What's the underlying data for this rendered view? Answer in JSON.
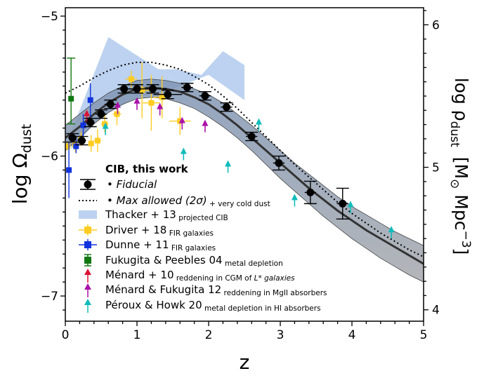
{
  "chart_data": {
    "type": "scatter",
    "xlabel": "z",
    "ylabel_left_main": "log Ω",
    "ylabel_left_sub": "dust",
    "ylabel_right_a": "log ρ",
    "ylabel_right_a_sub": "dust",
    "ylabel_right_b": "[M",
    "ylabel_right_b_sub": "⊙",
    "ylabel_right_b_rest": " Mpc",
    "ylabel_right_b_sup": "−3",
    "ylabel_right_b_close": "]",
    "xlim": [
      0,
      5
    ],
    "ylim_left": [
      -7.18,
      -4.94
    ],
    "ylim_right": [
      3.92,
      6.12
    ],
    "x_ticks": [
      "0",
      "1",
      "2",
      "3",
      "4",
      "5"
    ],
    "y_ticks_left": [
      "−5",
      "−6",
      "−7"
    ],
    "y_ticks_right": [
      "6",
      "5",
      "4"
    ],
    "colors": {
      "fiducial": "#333333",
      "band": "#9aa0a6",
      "band_top": "#6b86a8",
      "thacker": "#bcd2f0",
      "driver": "#ffcc22",
      "dunne": "#1133dd",
      "fukugita": "#117711",
      "menard10": "#dd1133",
      "menard_fukugita": "#aa11aa",
      "peroux": "#11bbbb"
    },
    "series": [
      {
        "name": "CIB, this work",
        "kind": "fiducial",
        "legend_lines": [
          "• Fiducial",
          "• Max allowed (2σ)"
        ],
        "legend_sub": " + very cold dust",
        "curve_x": [
          0,
          0.2,
          0.4,
          0.6,
          0.8,
          1.0,
          1.2,
          1.4,
          1.6,
          1.8,
          2.0,
          2.2,
          2.4,
          2.6,
          2.8,
          3.0,
          3.2,
          3.4,
          3.6,
          3.8,
          4.0,
          4.2,
          4.4,
          4.6,
          4.8,
          5.0
        ],
        "curve_y": [
          -5.87,
          -5.79,
          -5.7,
          -5.62,
          -5.56,
          -5.52,
          -5.51,
          -5.52,
          -5.54,
          -5.58,
          -5.63,
          -5.7,
          -5.78,
          -5.87,
          -5.96,
          -6.05,
          -6.14,
          -6.23,
          -6.31,
          -6.39,
          -6.46,
          -6.53,
          -6.59,
          -6.65,
          -6.71,
          -6.77
        ],
        "band_lo": [
          -5.96,
          -5.87,
          -5.77,
          -5.69,
          -5.63,
          -5.59,
          -5.58,
          -5.59,
          -5.62,
          -5.66,
          -5.72,
          -5.79,
          -5.87,
          -5.96,
          -6.06,
          -6.16,
          -6.25,
          -6.34,
          -6.43,
          -6.51,
          -6.59,
          -6.66,
          -6.73,
          -6.79,
          -6.85,
          -6.9
        ],
        "band_hi": [
          -5.78,
          -5.7,
          -5.62,
          -5.55,
          -5.5,
          -5.46,
          -5.45,
          -5.46,
          -5.48,
          -5.52,
          -5.56,
          -5.62,
          -5.7,
          -5.78,
          -5.87,
          -5.96,
          -6.05,
          -6.13,
          -6.21,
          -6.29,
          -6.36,
          -6.42,
          -6.48,
          -6.54,
          -6.59,
          -6.64
        ],
        "max_y": [
          -5.55,
          -5.5,
          -5.44,
          -5.39,
          -5.35,
          -5.33,
          -5.33,
          -5.35,
          -5.38,
          -5.43,
          -5.49,
          -5.57,
          -5.66,
          -5.76,
          -5.86,
          -5.96,
          -6.06,
          -6.15,
          -6.24,
          -6.33,
          -6.41,
          -6.48,
          -6.55,
          -6.61,
          -6.67,
          -6.72
        ],
        "points_x": [
          0.1,
          0.23,
          0.35,
          0.5,
          0.63,
          0.82,
          1.0,
          1.22,
          1.43,
          1.7,
          1.95,
          2.25,
          2.6,
          2.98,
          3.42,
          3.87
        ],
        "points_y": [
          -5.87,
          -5.89,
          -5.76,
          -5.7,
          -5.63,
          -5.52,
          -5.52,
          -5.52,
          -5.56,
          -5.51,
          -5.57,
          -5.65,
          -5.86,
          -6.05,
          -6.26,
          -6.34
        ],
        "points_xerr": [
          0.06,
          0.06,
          0.06,
          0.08,
          0.08,
          0.1,
          0.1,
          0.2,
          0.2,
          0.08,
          0.08,
          0.08,
          0.08,
          0.08,
          0.08,
          0.08
        ],
        "points_yerr": [
          0.03,
          0.03,
          0.03,
          0.03,
          0.03,
          0.03,
          0.03,
          0.03,
          0.03,
          0.03,
          0.03,
          0.03,
          0.03,
          0.05,
          0.08,
          0.11
        ]
      },
      {
        "name": "Thacker + 13",
        "sub": " projected CIB",
        "kind": "region",
        "upper_x": [
          0.08,
          0.6,
          1.3,
          1.55,
          1.9,
          2.2,
          2.5
        ],
        "upper_y": [
          -5.83,
          -5.15,
          -5.38,
          -5.38,
          -5.42,
          -5.25,
          -5.35
        ],
        "lower_x": [
          2.5,
          2.0,
          1.5,
          1.0,
          0.5,
          0.08
        ],
        "lower_y": [
          -5.6,
          -5.42,
          -5.52,
          -5.58,
          -5.72,
          -5.95
        ]
      },
      {
        "name": "Driver + 18",
        "sub": " FIR galaxies",
        "kind": "errbar",
        "x": [
          0.03,
          0.14,
          0.22,
          0.36,
          0.45,
          0.55,
          0.72,
          0.92,
          1.07,
          1.2,
          1.35,
          1.6
        ],
        "y": [
          -5.93,
          -5.92,
          -5.88,
          -5.91,
          -5.89,
          -5.77,
          -5.7,
          -5.45,
          -5.53,
          -5.62,
          -5.58,
          -5.75
        ],
        "xerr": [
          0.03,
          0.04,
          0.04,
          0.04,
          0.05,
          0.05,
          0.06,
          0.08,
          0.1,
          0.12,
          0.12,
          0.15
        ],
        "yerr": [
          0.03,
          0.05,
          0.05,
          0.06,
          0.08,
          0.06,
          0.08,
          0.06,
          0.2,
          0.2,
          0.15,
          0.1
        ]
      },
      {
        "name": "Dunne + 11",
        "sub": " FIR galaxies",
        "kind": "errbar",
        "x": [
          0.05,
          0.15,
          0.25,
          0.35
        ],
        "y": [
          -6.1,
          -5.93,
          -5.78,
          -5.6
        ],
        "xerr": [
          0.02,
          0.03,
          0.03,
          0.03
        ],
        "yerr": [
          0.2,
          0.05,
          0.08,
          0.12
        ]
      },
      {
        "name": "Fukugita & Peebles 04",
        "sub": " metal depletion",
        "kind": "errbar_square",
        "x": [
          0.08
        ],
        "y": [
          -5.59
        ],
        "xerr": [
          0
        ],
        "yerr_lo": [
          0.18
        ],
        "yerr_hi": [
          0.29
        ]
      },
      {
        "name": "Ménard + 10",
        "sub": " reddening in CGM of ",
        "sub_italic": "L* galaxies",
        "kind": "lowerlimit",
        "x": [
          0.3
        ],
        "y": [
          -5.73
        ]
      },
      {
        "name": "Ménard & Fukugita 12",
        "sub": " reddening in MgII absorbers",
        "kind": "lowerlimit",
        "x": [
          0.73,
          1.0,
          1.32,
          1.63,
          1.95
        ],
        "y": [
          -5.67,
          -5.64,
          -5.68,
          -5.78,
          -5.8
        ]
      },
      {
        "name": "Péroux & Howk 20",
        "sub": " metal depletion in HI absorbers",
        "kind": "lowerlimit",
        "x": [
          0.56,
          1.65,
          2.27,
          2.7,
          3.2,
          3.98,
          4.55
        ],
        "y": [
          -5.82,
          -6.0,
          -6.09,
          -5.79,
          -6.33,
          -6.38,
          -6.56
        ]
      }
    ]
  }
}
